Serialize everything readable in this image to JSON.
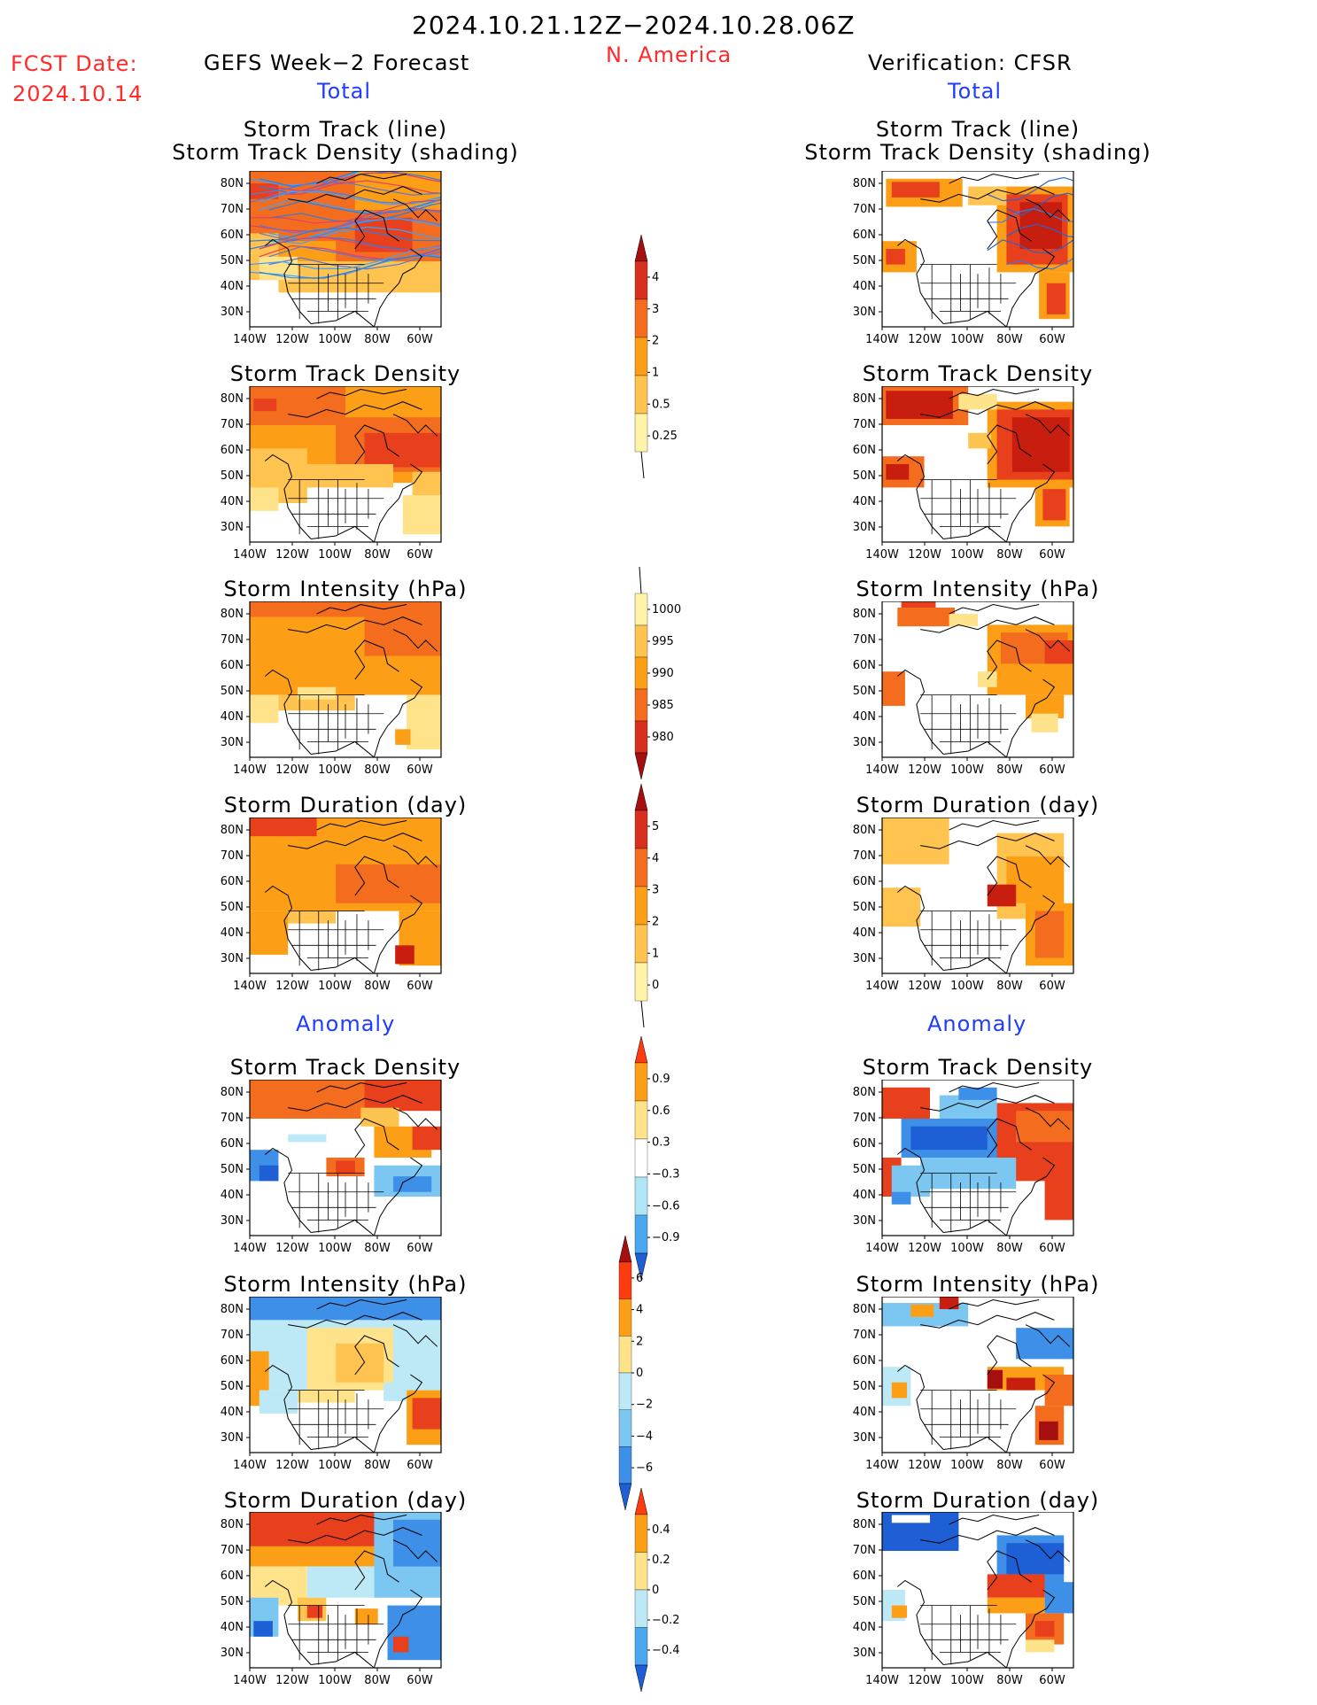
{
  "header": {
    "date_range": "2024.10.21.12Z−2024.10.28.06Z",
    "region": "N. America",
    "fcst_label": "FCST Date:",
    "fcst_date": "2024.10.14",
    "left_title": "GEFS Week−2 Forecast",
    "right_title": "Verification: CFSR",
    "total_label": "Total",
    "anomaly_label": "Anomaly"
  },
  "axes": {
    "lat_ticks": [
      "80N",
      "70N",
      "60N",
      "50N",
      "40N",
      "30N"
    ],
    "lon_ticks": [
      "140W",
      "120W",
      "100W",
      "80W",
      "60W"
    ]
  },
  "panels": [
    {
      "id": "track",
      "title1": "Storm Track (line)",
      "title2": "Storm Track Density (shading)"
    },
    {
      "id": "density",
      "title1": "Storm Track Density"
    },
    {
      "id": "intensity",
      "title1": "Storm Intensity (hPa)"
    },
    {
      "id": "duration",
      "title1": "Storm Duration (day)"
    },
    {
      "id": "density_anom",
      "title1": "Storm Track Density"
    },
    {
      "id": "intensity_anom",
      "title1": "Storm Intensity (hPa)"
    },
    {
      "id": "duration_anom",
      "title1": "Storm Duration (day)"
    }
  ],
  "colorbars": [
    {
      "id": "cb_density",
      "labels": [
        "4",
        "3",
        "2",
        "1",
        "0.5",
        "0.25"
      ],
      "colors": [
        "#a50f0f",
        "#d7301f",
        "#f46d1e",
        "#fd9f16",
        "#fec44f",
        "#fff3a8"
      ],
      "direction": "up"
    },
    {
      "id": "cb_intensity",
      "labels": [
        "1000",
        "995",
        "990",
        "985",
        "980"
      ],
      "colors": [
        "#fff3a8",
        "#fec44f",
        "#fd9f16",
        "#f46d1e",
        "#d7301f",
        "#a50f0f"
      ],
      "direction": "down"
    },
    {
      "id": "cb_duration",
      "labels": [
        "5",
        "4",
        "3",
        "2",
        "1",
        "0"
      ],
      "colors": [
        "#a50f0f",
        "#d7301f",
        "#f46d1e",
        "#fd9f16",
        "#fec44f",
        "#fff3a8"
      ],
      "direction": "up"
    },
    {
      "id": "cb_density_anom",
      "labels": [
        "0.9",
        "0.6",
        "0.3",
        "−0.3",
        "−0.6",
        "−0.9"
      ],
      "colors": [
        "#ff3b10",
        "#fd9f16",
        "#fee38a",
        "#ffffff",
        "#aee6f5",
        "#4aa8f0",
        "#1e5fd6"
      ],
      "direction": "both"
    },
    {
      "id": "cb_intensity_anom",
      "labels": [
        "6",
        "4",
        "2",
        "0",
        "−2",
        "−4",
        "−6"
      ],
      "colors": [
        "#a50f0f",
        "#ff3b10",
        "#fd9f16",
        "#fee38a",
        "#bde9f7",
        "#7cc6f2",
        "#3d8fe8",
        "#1e5fd6"
      ],
      "direction": "both"
    },
    {
      "id": "cb_duration_anom",
      "labels": [
        "0.4",
        "0.2",
        "0",
        "−0.2",
        "−0.4"
      ],
      "colors": [
        "#ff3b10",
        "#fd9f16",
        "#fee38a",
        "#bde9f7",
        "#4aa8f0",
        "#1e5fd6"
      ],
      "direction": "both"
    }
  ]
}
